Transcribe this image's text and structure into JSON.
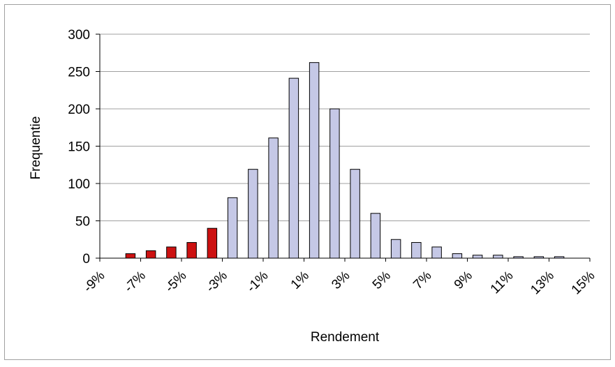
{
  "chart_data": {
    "type": "bar",
    "title": "",
    "xlabel": "Rendement",
    "ylabel": "Frequentie",
    "ylim": [
      0,
      300
    ],
    "y_ticks": [
      "0",
      "50",
      "100",
      "150",
      "200",
      "250",
      "300"
    ],
    "x_tick_labels": [
      "-9%",
      "-7%",
      "-5%",
      "-3%",
      "-1%",
      "1%",
      "3%",
      "5%",
      "7%",
      "9%",
      "11%",
      "13%",
      "15%"
    ],
    "x_range": [
      -9,
      15
    ],
    "categories": [
      -8.5,
      -7.5,
      -6.5,
      -5.5,
      -4.5,
      -3.5,
      -2.5,
      -1.5,
      -0.5,
      0.5,
      1.5,
      2.5,
      3.5,
      4.5,
      5.5,
      6.5,
      7.5,
      8.5,
      9.5,
      10.5,
      11.5,
      12.5,
      13.5,
      14.5
    ],
    "values": [
      0,
      6,
      10,
      15,
      21,
      40,
      81,
      119,
      161,
      241,
      262,
      200,
      119,
      60,
      25,
      21,
      15,
      6,
      4,
      4,
      2,
      2,
      2,
      0
    ],
    "highlight_threshold": -3,
    "grid": true,
    "legend": "none",
    "colors": {
      "tail": "#cc1111",
      "body": "#c5c8e6",
      "bar_edge": "#000000",
      "grid": "#a0a0a0",
      "frame": "#a0a0a0"
    }
  }
}
